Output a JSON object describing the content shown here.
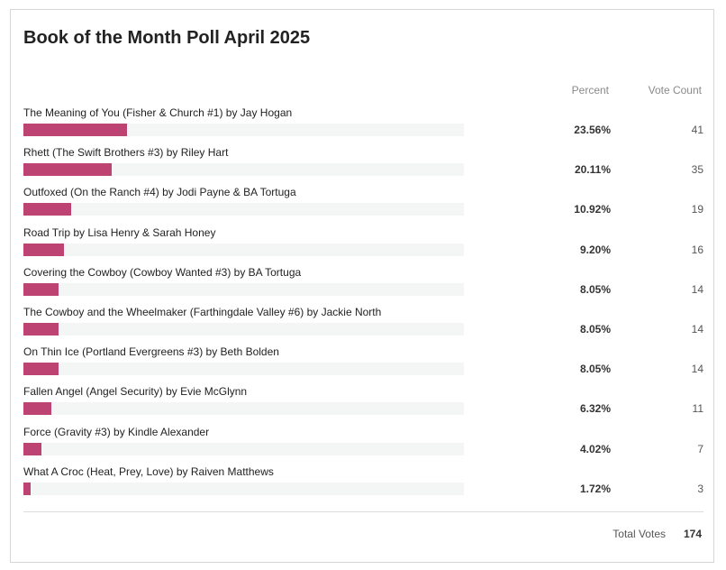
{
  "poll": {
    "title": "Book of the Month Poll April 2025",
    "percent_header": "Percent",
    "votes_header": "Vote Count",
    "total_label": "Total Votes",
    "total_votes": "174",
    "bar_color": "#bd4472",
    "track_color": "#f4f5f5"
  },
  "chart_data": {
    "type": "bar",
    "orientation": "horizontal",
    "title": "Book of the Month Poll April 2025",
    "xlim": [
      0,
      100
    ],
    "grid": false,
    "legend": "none",
    "categories": [
      "The Meaning of You (Fisher & Church #1) by Jay Hogan",
      "Rhett (The Swift Brothers #3) by Riley Hart",
      "Outfoxed (On the Ranch #4) by Jodi Payne & BA Tortuga",
      "Road Trip by Lisa Henry & Sarah Honey",
      "Covering the Cowboy (Cowboy Wanted #3) by BA Tortuga",
      "The Cowboy and the Wheelmaker (Farthingdale Valley #6) by Jackie North",
      "On Thin Ice (Portland Evergreens #3) by Beth Bolden",
      "Fallen Angel (Angel Security) by Evie McGlynn",
      "Force (Gravity #3) by Kindle Alexander",
      "What A Croc (Heat, Prey, Love) by Raiven Matthews"
    ],
    "series": [
      {
        "values": [
          23.56,
          20.11,
          10.92,
          9.2,
          8.05,
          8.05,
          8.05,
          6.32,
          4.02,
          1.72
        ]
      }
    ],
    "percent_labels": [
      "23.56%",
      "20.11%",
      "10.92%",
      "9.20%",
      "8.05%",
      "8.05%",
      "8.05%",
      "6.32%",
      "4.02%",
      "1.72%"
    ],
    "vote_counts": [
      41,
      35,
      19,
      16,
      14,
      14,
      14,
      11,
      7,
      3
    ]
  }
}
